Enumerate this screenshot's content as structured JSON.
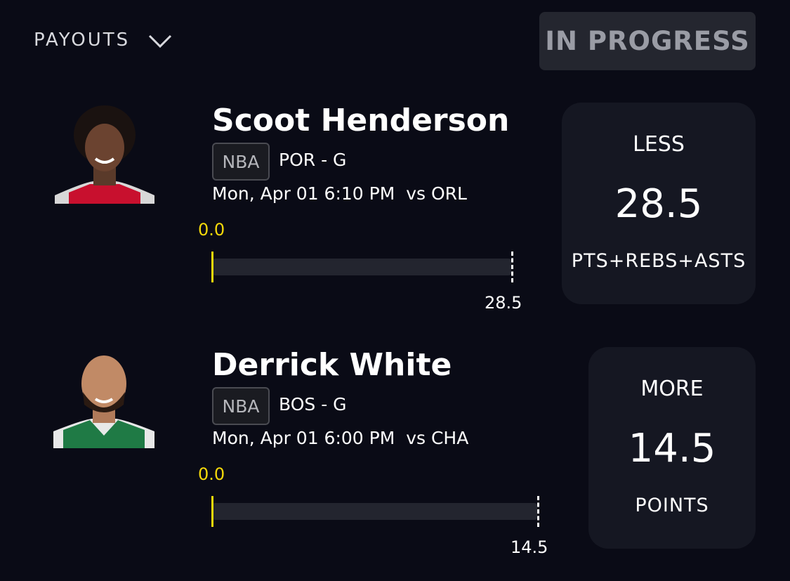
{
  "header": {
    "payouts": "PAYOUTS",
    "status": "IN PROGRESS"
  },
  "picks": [
    {
      "name": "Scoot Henderson",
      "league": "NBA",
      "team_position": "POR - G",
      "game_time": "Mon, Apr 01 6:10 PM",
      "opponent": "vs ORL",
      "current": "0.0",
      "line_marker": "28.5",
      "direction": "LESS",
      "line": "28.5",
      "stat": "PTS+REBS+ASTS"
    },
    {
      "name": "Derrick White",
      "league": "NBA",
      "team_position": "BOS - G",
      "game_time": "Mon, Apr 01 6:00 PM",
      "opponent": "vs CHA",
      "current": "0.0",
      "line_marker": "14.5",
      "direction": "MORE",
      "line": "14.5",
      "stat": "POINTS"
    }
  ]
}
